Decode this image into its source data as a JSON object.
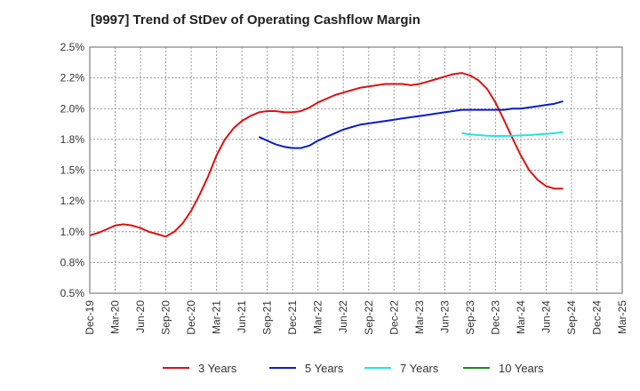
{
  "chart_data": {
    "type": "line",
    "title": "[9997]  Trend of StDev of Operating Cashflow Margin",
    "xlabel": "",
    "ylabel": "",
    "x_ticks": [
      "Dec-19",
      "Mar-20",
      "Jun-20",
      "Sep-20",
      "Dec-20",
      "Mar-21",
      "Jun-21",
      "Sep-21",
      "Dec-21",
      "Mar-22",
      "Jun-22",
      "Sep-22",
      "Dec-22",
      "Mar-23",
      "Jun-23",
      "Sep-23",
      "Dec-23",
      "Mar-24",
      "Jun-24",
      "Sep-24",
      "Dec-24",
      "Mar-25"
    ],
    "y_ticks": [
      "0.5%",
      "0.8%",
      "1.0%",
      "1.2%",
      "1.5%",
      "1.8%",
      "2.0%",
      "2.2%",
      "2.5%"
    ],
    "ylim": [
      0.5,
      2.5
    ],
    "grid": true,
    "legend_position": "bottom",
    "series": [
      {
        "name": "3 Years",
        "color": "#dd1111",
        "values": [
          [
            0,
            0.97
          ],
          [
            0.33,
            0.99
          ],
          [
            0.67,
            1.02
          ],
          [
            1,
            1.05
          ],
          [
            1.33,
            1.06
          ],
          [
            1.67,
            1.05
          ],
          [
            2,
            1.03
          ],
          [
            2.33,
            1.0
          ],
          [
            2.67,
            0.98
          ],
          [
            3,
            0.96
          ],
          [
            3.33,
            1.0
          ],
          [
            3.67,
            1.07
          ],
          [
            4,
            1.17
          ],
          [
            4.33,
            1.3
          ],
          [
            4.67,
            1.45
          ],
          [
            5,
            1.62
          ],
          [
            5.33,
            1.75
          ],
          [
            5.67,
            1.84
          ],
          [
            6,
            1.9
          ],
          [
            6.33,
            1.94
          ],
          [
            6.67,
            1.97
          ],
          [
            7,
            1.98
          ],
          [
            7.33,
            1.98
          ],
          [
            7.67,
            1.97
          ],
          [
            8,
            1.97
          ],
          [
            8.33,
            1.98
          ],
          [
            8.67,
            2.01
          ],
          [
            9,
            2.05
          ],
          [
            9.33,
            2.08
          ],
          [
            9.67,
            2.11
          ],
          [
            10,
            2.13
          ],
          [
            10.33,
            2.15
          ],
          [
            10.67,
            2.17
          ],
          [
            11,
            2.18
          ],
          [
            11.33,
            2.19
          ],
          [
            11.67,
            2.2
          ],
          [
            12,
            2.2
          ],
          [
            12.33,
            2.2
          ],
          [
            12.67,
            2.19
          ],
          [
            13,
            2.2
          ],
          [
            13.33,
            2.22
          ],
          [
            13.67,
            2.24
          ],
          [
            14,
            2.26
          ],
          [
            14.33,
            2.28
          ],
          [
            14.67,
            2.29
          ],
          [
            15,
            2.27
          ],
          [
            15.33,
            2.23
          ],
          [
            15.67,
            2.16
          ],
          [
            16,
            2.05
          ],
          [
            16.33,
            1.91
          ],
          [
            16.67,
            1.76
          ],
          [
            17,
            1.62
          ],
          [
            17.33,
            1.5
          ],
          [
            17.67,
            1.42
          ],
          [
            18,
            1.37
          ],
          [
            18.33,
            1.35
          ],
          [
            18.67,
            1.35
          ]
        ]
      },
      {
        "name": "5 Years",
        "color": "#0a1ec8",
        "values": [
          [
            6.67,
            1.77
          ],
          [
            7,
            1.74
          ],
          [
            7.33,
            1.71
          ],
          [
            7.67,
            1.69
          ],
          [
            8,
            1.68
          ],
          [
            8.33,
            1.68
          ],
          [
            8.67,
            1.7
          ],
          [
            9,
            1.74
          ],
          [
            9.33,
            1.77
          ],
          [
            9.67,
            1.8
          ],
          [
            10,
            1.83
          ],
          [
            10.33,
            1.85
          ],
          [
            10.67,
            1.87
          ],
          [
            11,
            1.88
          ],
          [
            11.33,
            1.89
          ],
          [
            11.67,
            1.9
          ],
          [
            12,
            1.91
          ],
          [
            12.33,
            1.92
          ],
          [
            12.67,
            1.93
          ],
          [
            13,
            1.94
          ],
          [
            13.33,
            1.95
          ],
          [
            13.67,
            1.96
          ],
          [
            14,
            1.97
          ],
          [
            14.33,
            1.98
          ],
          [
            14.67,
            1.99
          ],
          [
            15,
            1.99
          ],
          [
            15.33,
            1.99
          ],
          [
            15.67,
            1.99
          ],
          [
            16,
            1.99
          ],
          [
            16.33,
            1.99
          ],
          [
            16.67,
            2.0
          ],
          [
            17,
            2.0
          ],
          [
            17.33,
            2.01
          ],
          [
            17.67,
            2.02
          ],
          [
            18,
            2.03
          ],
          [
            18.33,
            2.04
          ],
          [
            18.67,
            2.06
          ]
        ]
      },
      {
        "name": "7 Years",
        "color": "#22e3e8",
        "values": [
          [
            14.67,
            1.8
          ],
          [
            15,
            1.79
          ],
          [
            15.33,
            1.785
          ],
          [
            15.67,
            1.78
          ],
          [
            16,
            1.778
          ],
          [
            16.33,
            1.778
          ],
          [
            16.67,
            1.78
          ],
          [
            17,
            1.782
          ],
          [
            17.33,
            1.785
          ],
          [
            17.67,
            1.79
          ],
          [
            18,
            1.795
          ],
          [
            18.33,
            1.8
          ],
          [
            18.67,
            1.81
          ]
        ]
      },
      {
        "name": "10 Years",
        "color": "#1a8a1a",
        "values": []
      }
    ]
  }
}
